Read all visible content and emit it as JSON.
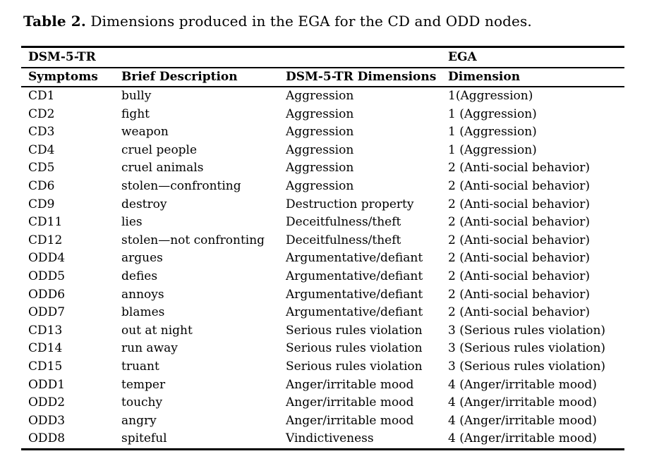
{
  "caption": {
    "label": "Table 2.",
    "text": " Dimensions produced in the EGA for the CD and ODD nodes."
  },
  "table": {
    "group_headers": {
      "left": "DSM-5-TR",
      "right": "EGA"
    },
    "columns": [
      "Symptoms",
      "Brief Description",
      "DSM-5-TR Dimensions",
      "Dimension"
    ],
    "rows": [
      [
        "CD1",
        "bully",
        "Aggression",
        "1(Aggression)"
      ],
      [
        "CD2",
        "fight",
        "Aggression",
        "1 (Aggression)"
      ],
      [
        "CD3",
        "weapon",
        "Aggression",
        "1 (Aggression)"
      ],
      [
        "CD4",
        "cruel people",
        "Aggression",
        "1 (Aggression)"
      ],
      [
        "CD5",
        "cruel animals",
        "Aggression",
        "2 (Anti-social behavior)"
      ],
      [
        "CD6",
        "stolen—confronting",
        "Aggression",
        "2 (Anti-social behavior)"
      ],
      [
        "CD9",
        "destroy",
        "Destruction property",
        "2 (Anti-social behavior)"
      ],
      [
        "CD11",
        "lies",
        "Deceitfulness/theft",
        "2 (Anti-social behavior)"
      ],
      [
        "CD12",
        "stolen—not confronting",
        "Deceitfulness/theft",
        "2 (Anti-social behavior)"
      ],
      [
        "ODD4",
        "argues",
        "Argumentative/defiant",
        "2 (Anti-social behavior)"
      ],
      [
        "ODD5",
        "defies",
        "Argumentative/defiant",
        "2 (Anti-social behavior)"
      ],
      [
        "ODD6",
        "annoys",
        "Argumentative/defiant",
        "2 (Anti-social behavior)"
      ],
      [
        "ODD7",
        "blames",
        "Argumentative/defiant",
        "2 (Anti-social behavior)"
      ],
      [
        "CD13",
        "out at night",
        "Serious rules violation",
        "3 (Serious rules violation)"
      ],
      [
        "CD14",
        "run away",
        "Serious rules violation",
        "3 (Serious rules violation)"
      ],
      [
        "CD15",
        "truant",
        "Serious rules violation",
        "3 (Serious rules violation)"
      ],
      [
        "ODD1",
        "temper",
        "Anger/irritable mood",
        "4 (Anger/irritable mood)"
      ],
      [
        "ODD2",
        "touchy",
        "Anger/irritable mood",
        "4 (Anger/irritable mood)"
      ],
      [
        "ODD3",
        "angry",
        "Anger/irritable mood",
        "4 (Anger/irritable mood)"
      ],
      [
        "ODD8",
        "spiteful",
        "Vindictiveness",
        "4 (Anger/irritable mood)"
      ]
    ],
    "colors": {
      "text": "#000000",
      "background": "#ffffff",
      "rule": "#000000"
    }
  }
}
